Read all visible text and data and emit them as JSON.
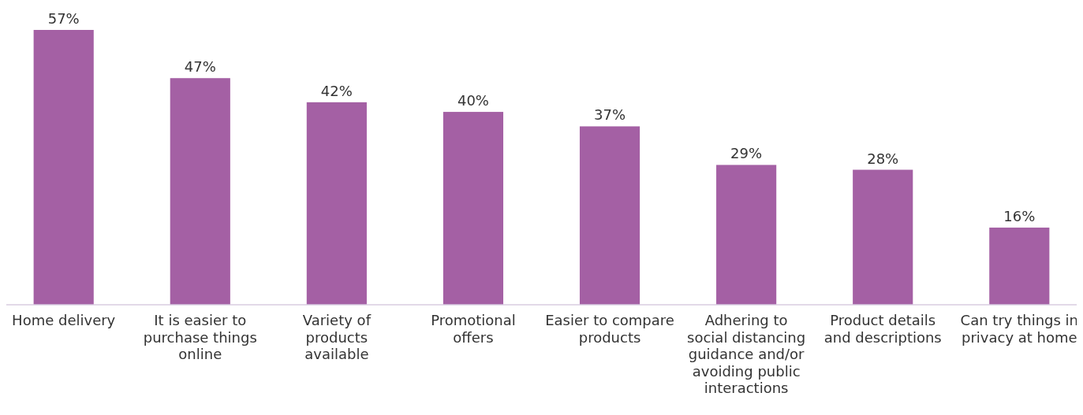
{
  "chart_data": {
    "type": "bar",
    "categories": [
      "Home delivery",
      "It is easier to purchase things online",
      "Variety of products available",
      "Promotional offers",
      "Easier to compare products",
      "Adhering to social distancing guidance and/or avoiding public interactions",
      "Product details and descriptions",
      "Can try things in privacy at home"
    ],
    "values": [
      57,
      47,
      42,
      40,
      37,
      29,
      28,
      16
    ],
    "value_labels": [
      "57%",
      "47%",
      "42%",
      "40%",
      "37%",
      "29%",
      "28%",
      "16%"
    ],
    "color": "#a460a4"
  }
}
